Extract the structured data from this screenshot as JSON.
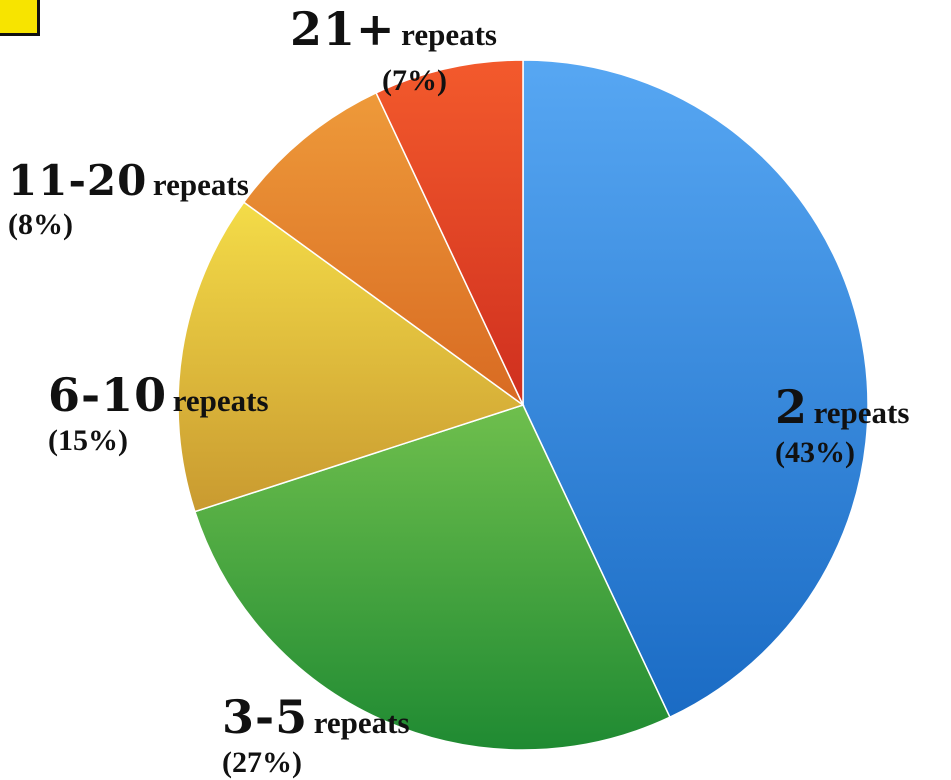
{
  "chart_data": {
    "type": "pie",
    "title": "",
    "start_angle_deg": 0,
    "direction": "clockwise",
    "slices": [
      {
        "label": "2",
        "suffix": "repeats",
        "value": 43,
        "value_text": "(43%)",
        "color_light": "#57a7f3",
        "color_dark": "#1a6bc4"
      },
      {
        "label": "3-5",
        "suffix": "repeats",
        "value": 27,
        "value_text": "(27%)",
        "color_light": "#6fbf4d",
        "color_dark": "#1f8a32"
      },
      {
        "label": "6-10",
        "suffix": "repeats",
        "value": 15,
        "value_text": "(15%)",
        "color_light": "#f4dc48",
        "color_dark": "#c99a30"
      },
      {
        "label": "11-20",
        "suffix": "repeats",
        "value": 8,
        "value_text": "(8%)",
        "color_light": "#ee9a3a",
        "color_dark": "#d86a22"
      },
      {
        "label": "21+",
        "suffix": "repeats",
        "value": 7,
        "value_text": "(7%)",
        "color_light": "#f35a2c",
        "color_dark": "#cf2f1f"
      }
    ]
  }
}
